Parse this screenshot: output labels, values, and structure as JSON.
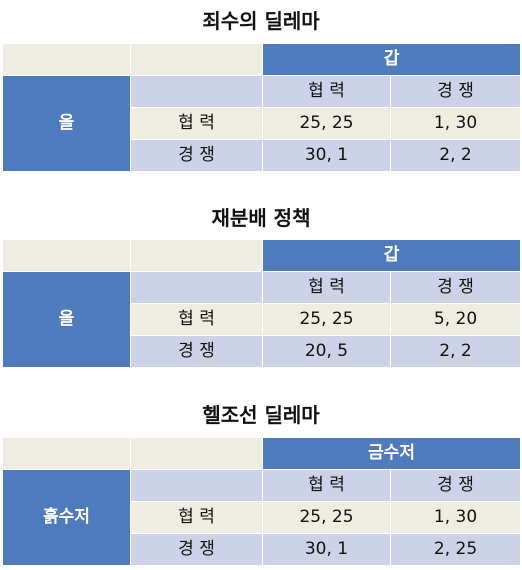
{
  "tables": [
    {
      "title": "죄수의 딜레마",
      "col_player": "갑",
      "row_player": "을",
      "col_strategies": [
        "협 력",
        "경 쟁"
      ],
      "row_strategies": [
        "협 력",
        "경 쟁"
      ],
      "payoffs": [
        [
          "25, 25",
          "1, 30"
        ],
        [
          "30, 1",
          "2, 2"
        ]
      ]
    },
    {
      "title": "재분배 정책",
      "col_player": "갑",
      "row_player": "을",
      "col_strategies": [
        "협 력",
        "경 쟁"
      ],
      "row_strategies": [
        "협 력",
        "경 쟁"
      ],
      "payoffs": [
        [
          "25, 25",
          "5, 20"
        ],
        [
          "20, 5",
          "2, 2"
        ]
      ]
    },
    {
      "title": "헬조선 딜레마",
      "col_player": "금수저",
      "row_player": "흙수저",
      "col_strategies": [
        "협 력",
        "경 쟁"
      ],
      "row_strategies": [
        "협 력",
        "경 쟁"
      ],
      "payoffs": [
        [
          "25, 25",
          "1, 30"
        ],
        [
          "30, 1",
          "2, 25"
        ]
      ]
    }
  ],
  "colors": {
    "header_blue": "#4d7bbd",
    "beige": "#efece1",
    "lavender": "#ccd3e8"
  }
}
